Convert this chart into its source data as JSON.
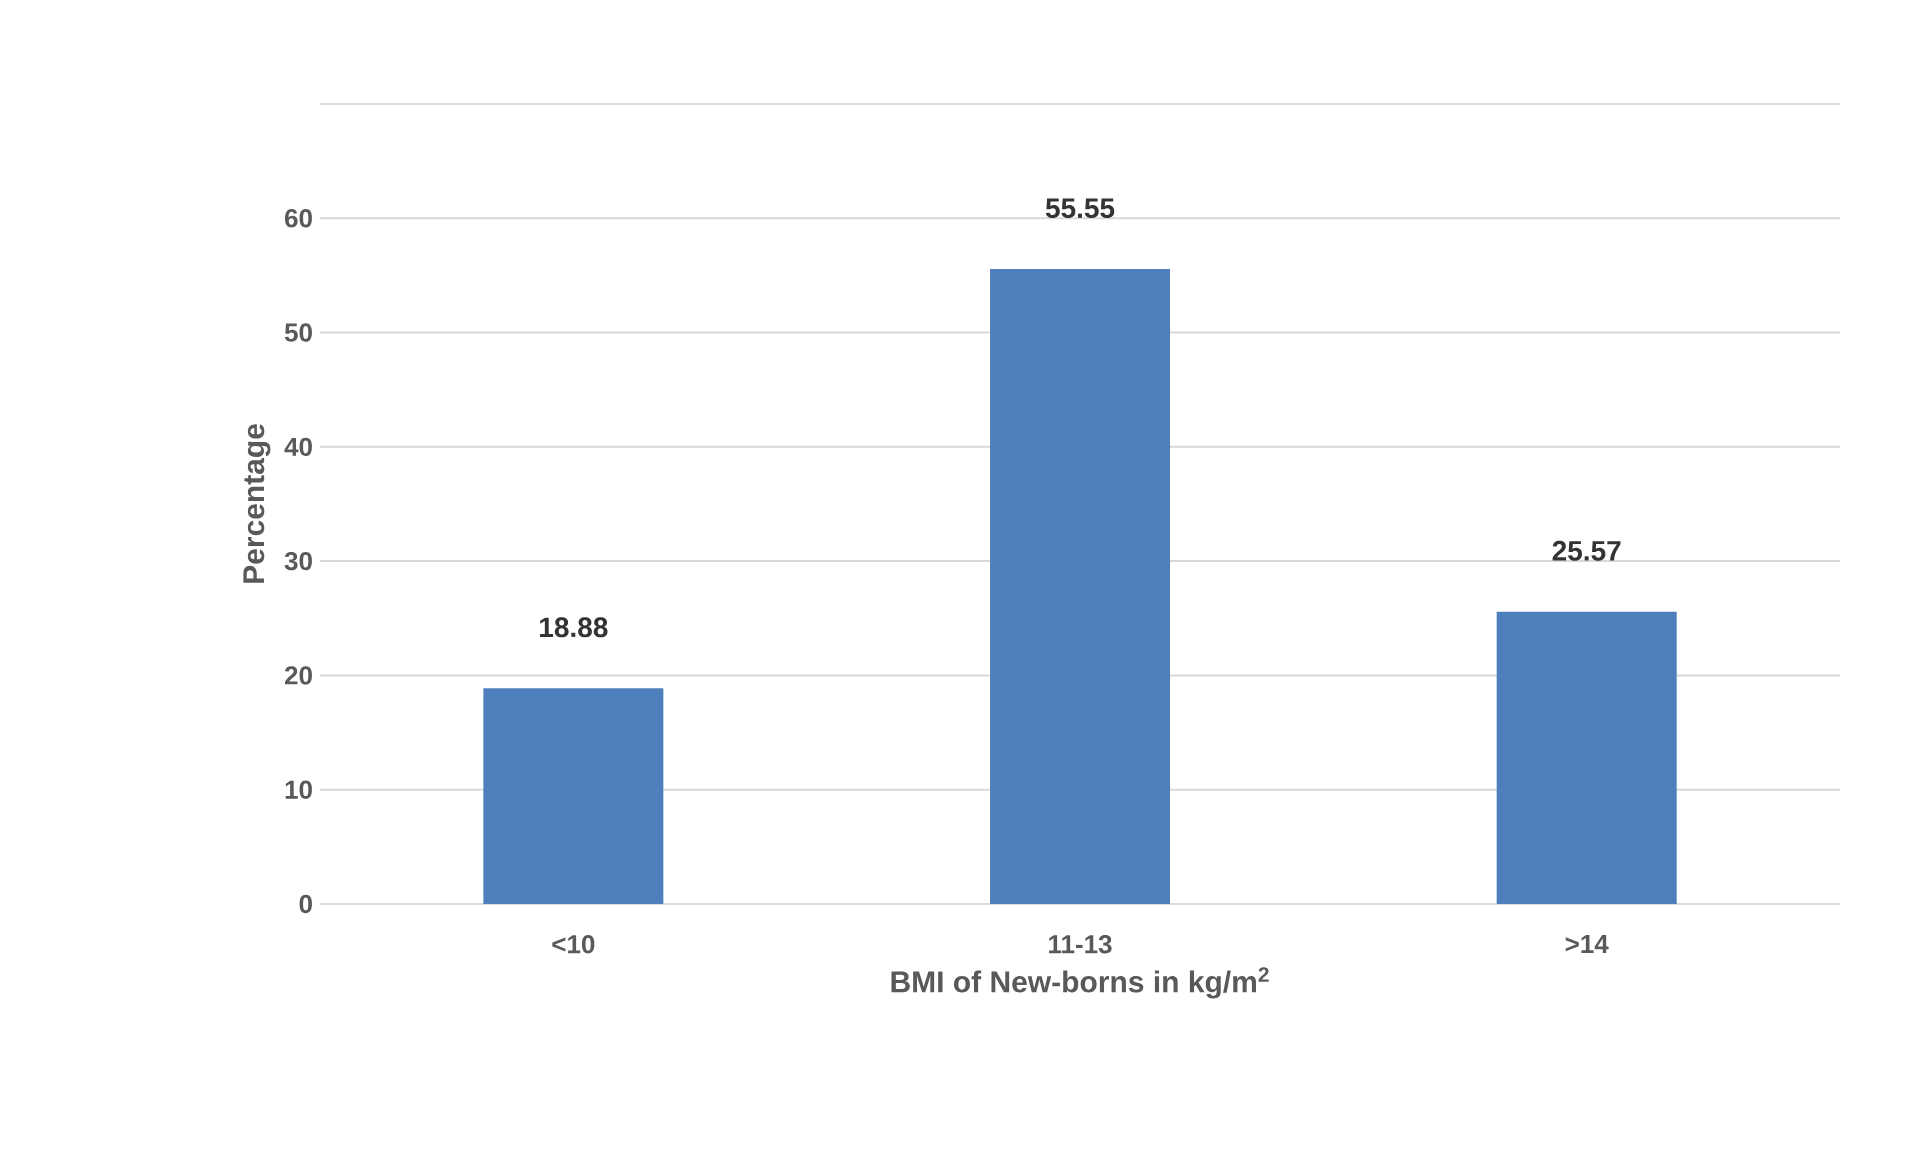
{
  "chart_data": {
    "type": "bar",
    "xlabel": "BMI of New-borns in kg/m$^{2}$",
    "ylabel": "Percentage",
    "categories": [
      "<10",
      "11-13",
      ">14"
    ],
    "values": [
      18.88,
      55.55,
      25.57
    ],
    "color": "#4e7fbd",
    "ylim": [
      0,
      70
    ],
    "yticks": [
      0,
      10,
      20,
      30,
      40,
      50,
      60,
      {
        "value": 70,
        "label": null
      }
    ],
    "grid": "y",
    "data_labels": true
  }
}
